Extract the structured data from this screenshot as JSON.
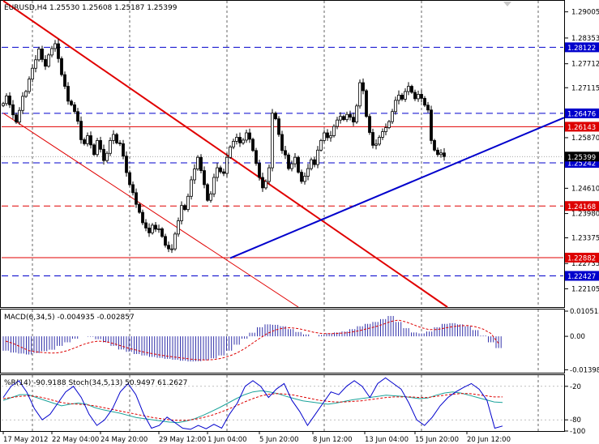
{
  "colors": {
    "background": "#ffffff",
    "frame": "#000000",
    "grid": "#000000",
    "candle": "#000000",
    "red_line": "#e00000",
    "blue_line": "#0000cc",
    "macd_hist": "#3333aa",
    "signal": "#dd0000",
    "wpr": "#0000cc",
    "stoch_main": "#1aa39a",
    "stoch_signal": "#dd0000",
    "label_blue_bg": "#0000cc",
    "label_red_bg": "#dd0000",
    "label_text_on_color": "#ffffff"
  },
  "icons": [
    "window-arrow-icon"
  ],
  "chart_data": [
    {
      "type": "candlestick",
      "title": "EURUSD,H4  1.25530 1.25608 1.25187 1.25399",
      "symbol": "EURUSD",
      "timeframe": "H4",
      "ohlc_header": {
        "open": 1.2553,
        "high": 1.25608,
        "low": 1.25187,
        "close": 1.25399
      },
      "ylim": [
        1.2165,
        1.2928
      ],
      "y_ticks": [
        "1.29005",
        "1.28353",
        "1.27712",
        "1.27115",
        "1.26476",
        "1.25870",
        "1.25399",
        "1.24610",
        "1.23980",
        "1.23375",
        "1.22735",
        "1.22105"
      ],
      "x_ticks": [
        "17 May 2012",
        "22 May 04:00",
        "24 May 20:00",
        "29 May 12:00",
        "1 Jun 04:00",
        "5 Jun 20:00",
        "8 Jun 12:00",
        "13 Jun 04:00",
        "15 Jun 20:00",
        "20 Jun 12:00"
      ],
      "x_tick_positions": [
        0,
        14,
        30,
        46,
        62,
        78,
        94,
        110,
        126,
        142
      ],
      "grid": "vertical dashed",
      "close_series": [
        1.2672,
        1.2691,
        1.2669,
        1.2644,
        1.2626,
        1.2655,
        1.269,
        1.2702,
        1.2733,
        1.276,
        1.2781,
        1.2808,
        1.2782,
        1.2765,
        1.2793,
        1.2809,
        1.2821,
        1.2784,
        1.2744,
        1.2715,
        1.2678,
        1.2669,
        1.2652,
        1.2628,
        1.2582,
        1.2572,
        1.2592,
        1.2569,
        1.2545,
        1.258,
        1.2558,
        1.253,
        1.2548,
        1.258,
        1.2595,
        1.2574,
        1.2572,
        1.2541,
        1.25,
        1.247,
        1.245,
        1.2421,
        1.2401,
        1.2375,
        1.2362,
        1.235,
        1.2369,
        1.2359,
        1.236,
        1.2341,
        1.2319,
        1.231,
        1.231,
        1.2347,
        1.238,
        1.2418,
        1.2408,
        1.2441,
        1.2482,
        1.2509,
        1.2538,
        1.2505,
        1.247,
        1.2431,
        1.2447,
        1.2488,
        1.2512,
        1.2502,
        1.2498,
        1.2538,
        1.2564,
        1.2578,
        1.2588,
        1.2574,
        1.2581,
        1.2599,
        1.2583,
        1.2555,
        1.2523,
        1.2488,
        1.2462,
        1.2478,
        1.2512,
        1.2648,
        1.2634,
        1.2595,
        1.2555,
        1.2544,
        1.251,
        1.2522,
        1.2538,
        1.2501,
        1.2478,
        1.2491,
        1.251,
        1.2532,
        1.252,
        1.2556,
        1.258,
        1.2599,
        1.2587,
        1.2592,
        1.2615,
        1.2631,
        1.264,
        1.2632,
        1.2645,
        1.2638,
        1.2626,
        1.2666,
        1.2724,
        1.2704,
        1.264,
        1.26,
        1.2568,
        1.2571,
        1.2588,
        1.2602,
        1.2612,
        1.2627,
        1.2652,
        1.268,
        1.2693,
        1.2683,
        1.2702,
        1.2715,
        1.27,
        1.2684,
        1.2695,
        1.2685,
        1.2668,
        1.2656,
        1.258,
        1.2556,
        1.2545,
        1.2549,
        1.254
      ],
      "horizontal_lines": [
        {
          "price": 1.28122,
          "label": "1.28122",
          "color": "blue",
          "style": "dashed"
        },
        {
          "price": 1.26476,
          "label": "1.26476",
          "color": "blue",
          "style": "dashed"
        },
        {
          "price": 1.26143,
          "label": "1.26143",
          "color": "red",
          "style": "solid"
        },
        {
          "price": 1.25242,
          "label": "1.25242",
          "color": "blue",
          "style": "dashed"
        },
        {
          "price": 1.24168,
          "label": "1.24168",
          "color": "red",
          "style": "dashed"
        },
        {
          "price": 1.22882,
          "label": "1.22882",
          "color": "red",
          "style": "solid"
        },
        {
          "price": 1.22427,
          "label": "1.22427",
          "color": "blue",
          "style": "dashed"
        }
      ],
      "current_price": "1.25399",
      "trend_lines": [
        {
          "color": "red",
          "width": "thick",
          "from": {
            "bar": 0,
            "price": 1.2928
          },
          "to": {
            "bar": 137,
            "price": 1.2165
          }
        },
        {
          "color": "red",
          "width": "thin",
          "from": {
            "bar": 0,
            "price": 1.2648
          },
          "to": {
            "bar": 91,
            "price": 1.2165
          }
        },
        {
          "color": "blue",
          "width": "thick",
          "from": {
            "bar": 70,
            "price": 1.2287
          },
          "to": {
            "bar": 173,
            "price": 1.2637
          }
        }
      ]
    },
    {
      "type": "histogram+line",
      "title": "MACD(6,34,5) -0.004935 -0.002857",
      "ylim": [
        -0.0152,
        0.0112
      ],
      "y_ticks": [
        "0.010515",
        "0.00",
        "-0.01398"
      ],
      "series": [
        {
          "name": "MACD",
          "values": [
            -0.006,
            -0.0068,
            -0.0072,
            -0.0076,
            -0.007,
            -0.0062,
            -0.0056,
            -0.004,
            -0.0025,
            -0.001,
            0.0,
            -0.0002,
            -0.0012,
            -0.0025,
            -0.004,
            -0.0055,
            -0.0065,
            -0.0074,
            -0.008,
            -0.0086,
            -0.009,
            -0.0094,
            -0.0098,
            -0.0102,
            -0.0105,
            -0.0104,
            -0.01,
            -0.0092,
            -0.008,
            -0.006,
            -0.0035,
            -0.001,
            0.0015,
            0.0038,
            0.005,
            0.0048,
            0.0042,
            0.003,
            0.0018,
            0.0008,
            0.0,
            0.0006,
            0.0012,
            0.0016,
            0.002,
            0.003,
            0.0042,
            0.0052,
            0.006,
            0.0072,
            0.0085,
            0.006,
            0.0034,
            0.0016,
            0.0012,
            0.002,
            0.0038,
            0.0052,
            0.0055,
            0.005,
            0.0042,
            0.0026,
            0.0003,
            -0.0025,
            -0.0049
          ]
        },
        {
          "name": "Signal",
          "values": [
            -0.002,
            -0.003,
            -0.0045,
            -0.006,
            -0.0065,
            -0.0068,
            -0.007,
            -0.0068,
            -0.006,
            -0.0048,
            -0.0035,
            -0.0025,
            -0.002,
            -0.0022,
            -0.003,
            -0.004,
            -0.005,
            -0.0058,
            -0.0066,
            -0.0072,
            -0.0078,
            -0.0083,
            -0.0087,
            -0.0091,
            -0.0095,
            -0.0098,
            -0.0099,
            -0.0097,
            -0.0092,
            -0.0083,
            -0.007,
            -0.0052,
            -0.003,
            -0.0008,
            0.0012,
            0.0026,
            0.0034,
            0.0036,
            0.0032,
            0.0025,
            0.0017,
            0.0012,
            0.0011,
            0.0012,
            0.0014,
            0.0018,
            0.0024,
            0.0032,
            0.004,
            0.005,
            0.0062,
            0.0068,
            0.006,
            0.0048,
            0.0036,
            0.0028,
            0.0028,
            0.0034,
            0.004,
            0.0044,
            0.0045,
            0.004,
            0.003,
            0.0012,
            -0.0029
          ]
        }
      ]
    },
    {
      "type": "line",
      "title": "%R(14) -90.9188  Stoch(34,5,13) 50.9497 61.2627",
      "ylim": [
        -100,
        0
      ],
      "y_ticks": [
        "-20",
        "-80",
        "-100"
      ],
      "series": [
        {
          "name": "%R(14)",
          "values": [
            -40,
            -20,
            -10,
            -30,
            -60,
            -80,
            -70,
            -50,
            -30,
            -20,
            -40,
            -70,
            -90,
            -80,
            -60,
            -30,
            -15,
            -35,
            -70,
            -95,
            -90,
            -75,
            -85,
            -95,
            -97,
            -90,
            -96,
            -88,
            -95,
            -70,
            -50,
            -20,
            -10,
            -20,
            -40,
            -25,
            -15,
            -45,
            -65,
            -90,
            -70,
            -50,
            -30,
            -35,
            -20,
            -10,
            -20,
            -40,
            -15,
            -5,
            -15,
            -25,
            -50,
            -80,
            -90,
            -75,
            -55,
            -40,
            -30,
            -22,
            -15,
            -25,
            -45,
            -95,
            -91
          ]
        },
        {
          "name": "Stoch(34,5,13)",
          "values": [
            -45,
            -40,
            -35,
            -35,
            -40,
            -45,
            -50,
            -55,
            -52,
            -50,
            -52,
            -58,
            -62,
            -65,
            -68,
            -72,
            -76,
            -78,
            -80,
            -82,
            -84,
            -85,
            -82,
            -78,
            -72,
            -65,
            -58,
            -50,
            -42,
            -35,
            -30,
            -28,
            -30,
            -33,
            -38,
            -42,
            -46,
            -48,
            -50,
            -52,
            -50,
            -47,
            -44,
            -42,
            -40,
            -38,
            -36,
            -37,
            -38,
            -40,
            -42,
            -41,
            -36,
            -32,
            -30,
            -32,
            -36,
            -40,
            -44,
            -48,
            -49
          ]
        },
        {
          "name": "Signal",
          "values": [
            -42,
            -40,
            -38,
            -37,
            -38,
            -41,
            -45,
            -49,
            -51,
            -52,
            -53,
            -55,
            -58,
            -61,
            -64,
            -67,
            -70,
            -73,
            -76,
            -78,
            -80,
            -81,
            -81,
            -79,
            -76,
            -72,
            -67,
            -61,
            -55,
            -48,
            -42,
            -37,
            -34,
            -33,
            -34,
            -36,
            -39,
            -42,
            -45,
            -47,
            -48,
            -48,
            -47,
            -46,
            -44,
            -42,
            -40,
            -39,
            -39,
            -39,
            -40,
            -40,
            -38,
            -36,
            -34,
            -33,
            -33,
            -35,
            -37,
            -39,
            -39
          ]
        }
      ]
    }
  ]
}
